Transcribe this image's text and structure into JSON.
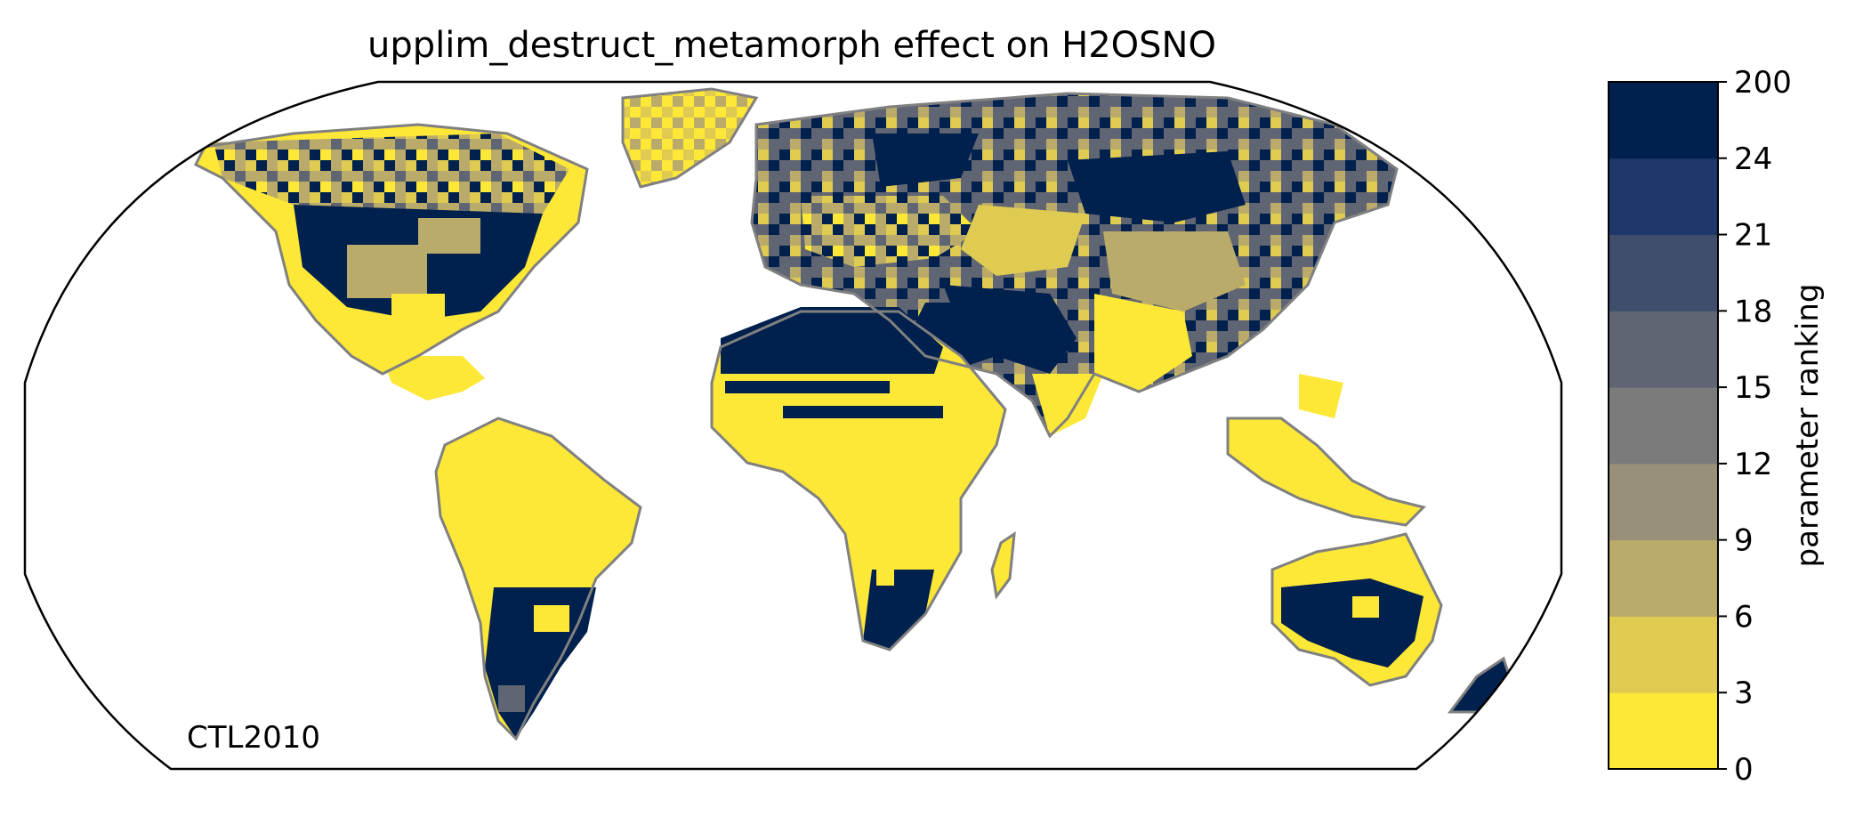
{
  "title": "upplim_destruct_metamorph effect on H2OSNO",
  "annotation": "CTL2010",
  "colorbar": {
    "label": "parameter ranking",
    "ticks": [
      "0",
      "3",
      "6",
      "9",
      "12",
      "15",
      "18",
      "21",
      "24",
      "200"
    ],
    "colors": [
      "#FDE737",
      "#DFCB52",
      "#BBAB6A",
      "#99907A",
      "#7C7B7C",
      "#5F6572",
      "#404E6E",
      "#1E386C",
      "#00204D"
    ]
  },
  "map": {
    "projection": "Robinson",
    "coastline_color": "#808080",
    "dominant_ranking_classes": {
      "yellow_0_3": "#FDE737",
      "navy_24_200": "#00204D",
      "gold_3_6": "#DFCB52",
      "khaki_6_9": "#BBAB6A",
      "grey_15_18": "#5F6572"
    }
  }
}
